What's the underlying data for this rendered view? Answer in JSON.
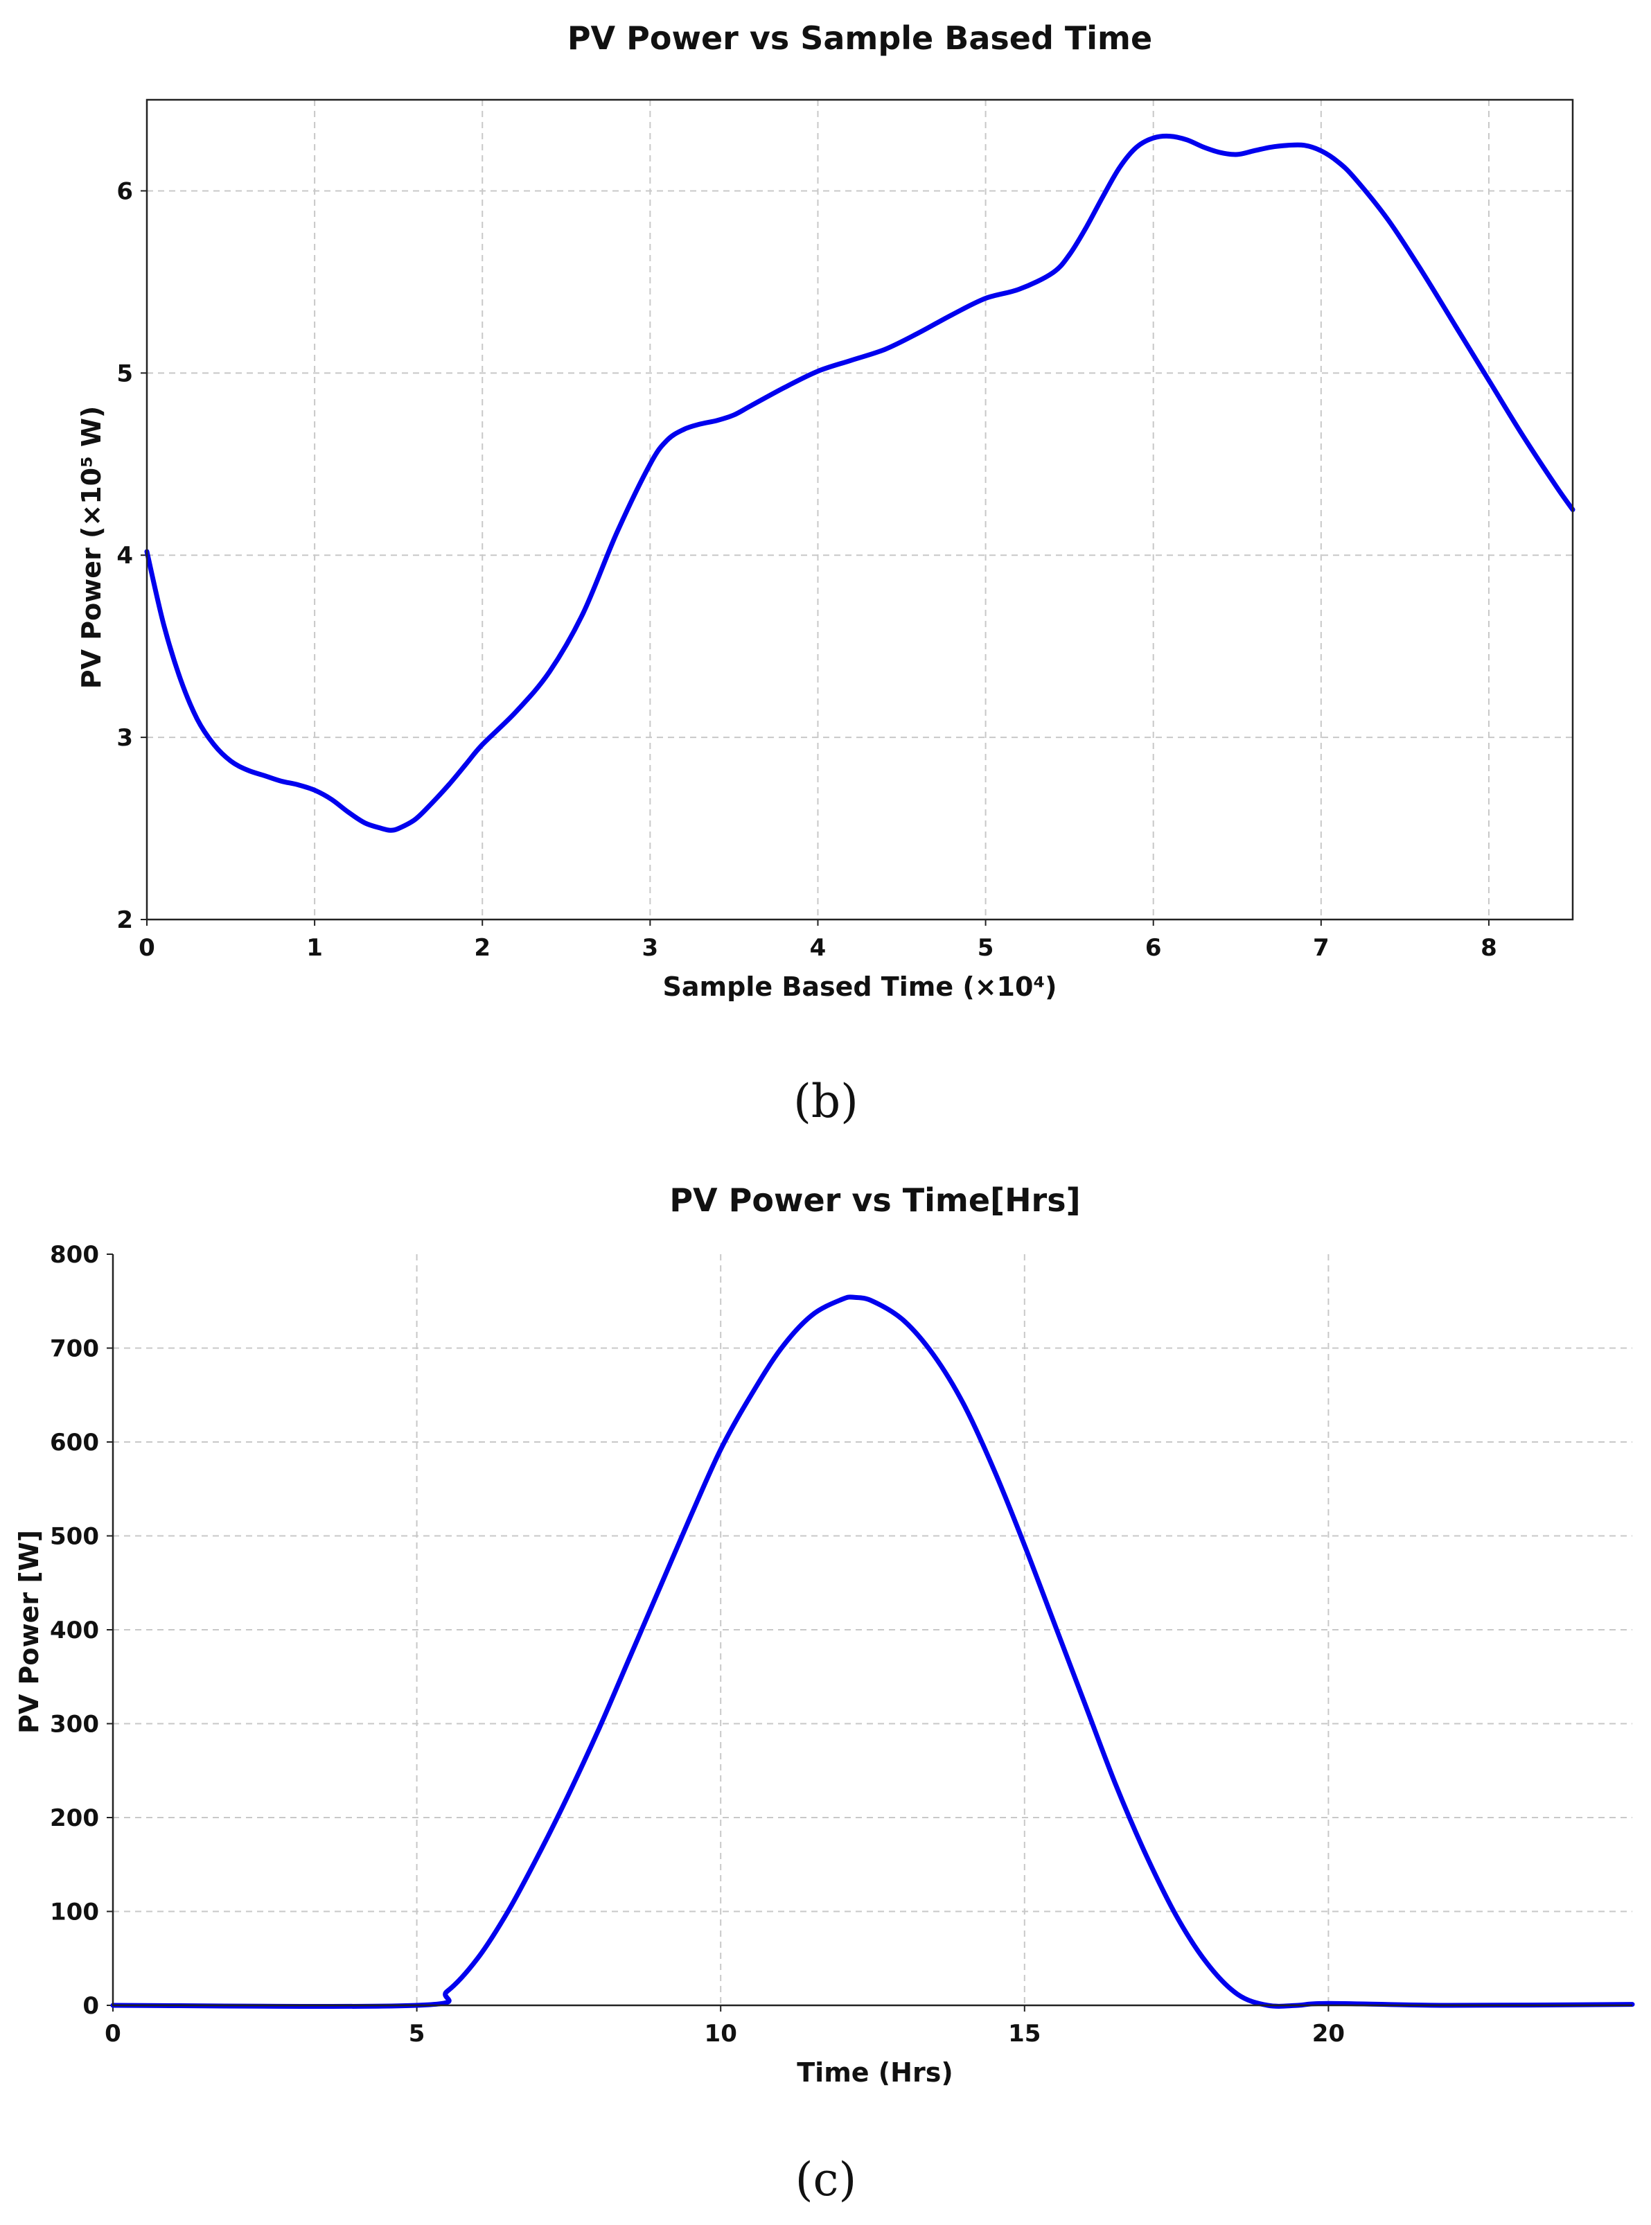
{
  "chart_data": [
    {
      "type": "line",
      "title": "PV Power vs Sample Based Time",
      "xlabel": "Sample Based Time (×10⁴)",
      "ylabel": "PV Power (×10⁵ W)",
      "xlim": [
        0,
        8.5
      ],
      "ylim": [
        2,
        6.5
      ],
      "xticks": [
        "0",
        "1",
        "2",
        "3",
        "4",
        "5",
        "6",
        "7",
        "8"
      ],
      "yticks": [
        "2",
        "3",
        "4",
        "5",
        "6"
      ],
      "grid": true,
      "caption": "(b)",
      "colors": {
        "line": "#0000ee"
      },
      "series": [
        {
          "x": [
            0,
            0.1,
            0.2,
            0.3,
            0.4,
            0.5,
            0.6,
            0.7,
            0.8,
            0.9,
            1.0,
            1.1,
            1.2,
            1.3,
            1.4,
            1.45,
            1.5,
            1.6,
            1.7,
            1.8,
            1.9,
            2.0,
            2.2,
            2.4,
            2.6,
            2.8,
            3.0,
            3.1,
            3.2,
            3.3,
            3.4,
            3.5,
            3.6,
            3.8,
            4.0,
            4.2,
            4.4,
            4.6,
            4.8,
            5.0,
            5.2,
            5.4,
            5.5,
            5.6,
            5.7,
            5.8,
            5.9,
            6.0,
            6.1,
            6.2,
            6.3,
            6.4,
            6.5,
            6.6,
            6.7,
            6.8,
            6.9,
            7.0,
            7.1,
            7.2,
            7.4,
            7.6,
            7.8,
            8.0,
            8.2,
            8.4,
            8.5
          ],
          "y": [
            4.02,
            3.62,
            3.32,
            3.1,
            2.96,
            2.87,
            2.82,
            2.79,
            2.76,
            2.74,
            2.71,
            2.66,
            2.59,
            2.53,
            2.5,
            2.49,
            2.5,
            2.55,
            2.64,
            2.74,
            2.85,
            2.96,
            3.14,
            3.36,
            3.68,
            4.12,
            4.5,
            4.63,
            4.69,
            4.72,
            4.74,
            4.77,
            4.82,
            4.92,
            5.01,
            5.07,
            5.13,
            5.22,
            5.32,
            5.41,
            5.46,
            5.55,
            5.65,
            5.8,
            5.97,
            6.13,
            6.24,
            6.29,
            6.3,
            6.28,
            6.24,
            6.21,
            6.2,
            6.22,
            6.24,
            6.25,
            6.25,
            6.22,
            6.16,
            6.07,
            5.84,
            5.56,
            5.26,
            4.96,
            4.66,
            4.38,
            4.25
          ]
        }
      ]
    },
    {
      "type": "line",
      "title": "PV Power vs Time[Hrs]",
      "xlabel": "Time (Hrs)",
      "ylabel": "PV Power [W]",
      "xlim": [
        0,
        25
      ],
      "ylim": [
        0,
        800
      ],
      "xticks": [
        "0",
        "5",
        "10",
        "15",
        "20"
      ],
      "yticks": [
        "0",
        "100",
        "200",
        "300",
        "400",
        "500",
        "600",
        "700",
        "800"
      ],
      "grid": true,
      "caption": "(c)",
      "colors": {
        "line": "#0000ee"
      },
      "series": [
        {
          "x": [
            0,
            5,
            5.5,
            6,
            6.5,
            7,
            7.5,
            8,
            8.5,
            9,
            9.5,
            10,
            10.5,
            11,
            11.5,
            12,
            12.2,
            12.5,
            13,
            13.5,
            14,
            14.5,
            15,
            15.5,
            16,
            16.5,
            17,
            17.5,
            18,
            18.5,
            19,
            19.5,
            20,
            22,
            25
          ],
          "y": [
            0,
            0,
            15,
            50,
            100,
            160,
            225,
            295,
            370,
            445,
            520,
            592,
            650,
            700,
            735,
            752,
            754,
            750,
            730,
            693,
            640,
            570,
            490,
            405,
            320,
            235,
            160,
            95,
            45,
            12,
            0,
            0,
            2,
            0,
            1
          ]
        }
      ]
    }
  ]
}
